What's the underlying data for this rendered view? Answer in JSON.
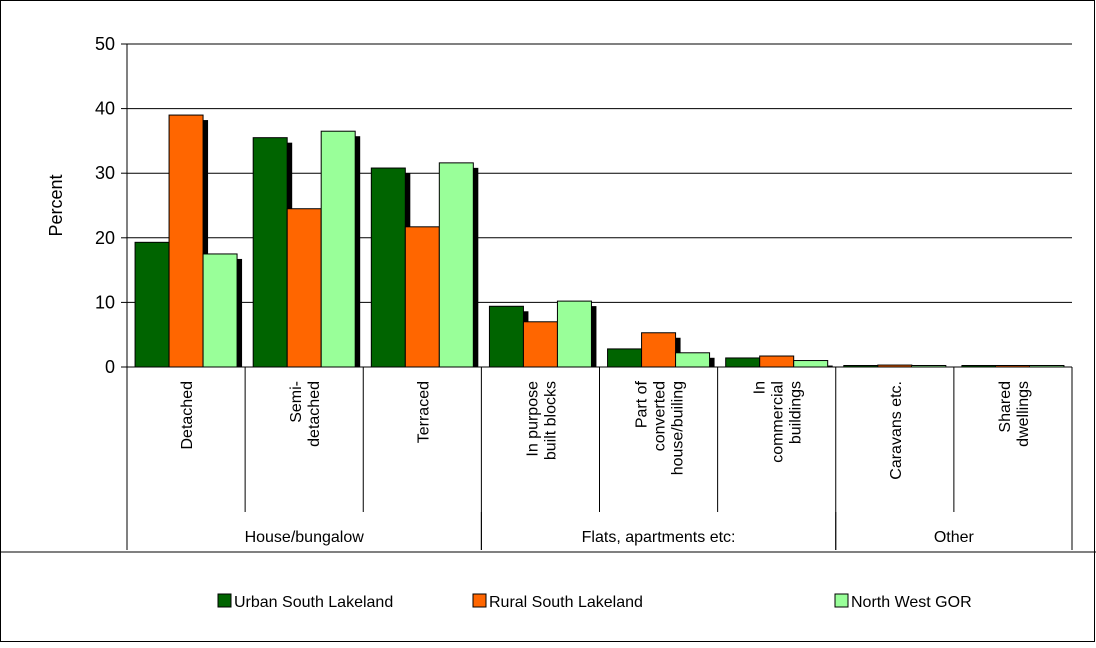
{
  "chart_data": {
    "type": "bar",
    "ylabel": "Percent",
    "ylim": [
      0,
      50
    ],
    "yticks": [
      0,
      10,
      20,
      30,
      40,
      50
    ],
    "grid": true,
    "legend_position": "bottom",
    "categories": [
      {
        "lines": [
          "Detached"
        ]
      },
      {
        "lines": [
          "Semi-",
          "detached"
        ]
      },
      {
        "lines": [
          "Terraced"
        ]
      },
      {
        "lines": [
          "In purpose",
          "built blocks"
        ]
      },
      {
        "lines": [
          "Part of",
          "converted",
          "house/builing"
        ]
      },
      {
        "lines": [
          "In",
          "commercial",
          "buildings"
        ]
      },
      {
        "lines": [
          "Caravans etc."
        ]
      },
      {
        "lines": [
          "Shared",
          "dwellings"
        ]
      }
    ],
    "groups": [
      {
        "label": "House/bungalow",
        "start": 0,
        "end": 2
      },
      {
        "label": "Flats, apartments etc:",
        "start": 3,
        "end": 5
      },
      {
        "label": "Other",
        "start": 6,
        "end": 7
      }
    ],
    "series": [
      {
        "name": "Urban South Lakeland",
        "color": "#006400",
        "values": [
          19.3,
          35.5,
          30.8,
          9.4,
          2.8,
          1.4,
          0.2,
          0.1
        ]
      },
      {
        "name": "Rural South Lakeland",
        "color": "#ff6600",
        "values": [
          39.0,
          24.5,
          21.7,
          7.0,
          5.3,
          1.7,
          0.3,
          0.1
        ]
      },
      {
        "name": "North West GOR",
        "color": "#99ff99",
        "values": [
          17.5,
          36.5,
          31.6,
          10.2,
          2.2,
          1.0,
          0.2,
          0.2
        ]
      }
    ]
  }
}
